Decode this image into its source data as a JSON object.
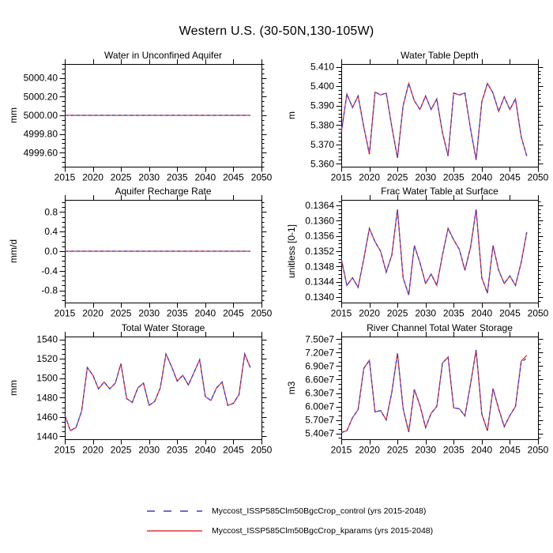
{
  "figure": {
    "title": "Western U.S. (30-50N,130-105W)",
    "background": "#ffffff",
    "frame_color": "#000000"
  },
  "years": [
    2015,
    2016,
    2017,
    2018,
    2019,
    2020,
    2021,
    2022,
    2023,
    2024,
    2025,
    2026,
    2027,
    2028,
    2029,
    2030,
    2031,
    2032,
    2033,
    2034,
    2035,
    2036,
    2037,
    2038,
    2039,
    2040,
    2041,
    2042,
    2043,
    2044,
    2045,
    2046,
    2047,
    2048
  ],
  "chart_data": [
    {
      "type": "line",
      "title": "Water in Unconfined Aquifer",
      "ylabel": "mm",
      "xlim": [
        2015,
        2050
      ],
      "ylim": [
        4999.45,
        5000.55
      ],
      "xticks": [
        2015,
        2020,
        2025,
        2030,
        2035,
        2040,
        2045,
        2050
      ],
      "ytick_vals": [
        4999.6,
        4999.8,
        5000.0,
        5000.2,
        5000.4
      ],
      "ytick_labels": [
        "4999.60",
        "4999.80",
        "5000.00",
        "5000.20",
        "5000.40"
      ],
      "grid": false,
      "series": [
        {
          "name": "Myccost_ISSP585Clm50BgcCrop_kparams",
          "color": "#e03535",
          "dash": false,
          "values": [
            5000,
            5000,
            5000,
            5000,
            5000,
            5000,
            5000,
            5000,
            5000,
            5000,
            5000,
            5000,
            5000,
            5000,
            5000,
            5000,
            5000,
            5000,
            5000,
            5000,
            5000,
            5000,
            5000,
            5000,
            5000,
            5000,
            5000,
            5000,
            5000,
            5000,
            5000,
            5000,
            5000,
            5000
          ]
        },
        {
          "name": "Myccost_ISSP585Clm50BgcCrop_control",
          "color": "#3c3ccd",
          "dash": true,
          "values": [
            5000,
            5000,
            5000,
            5000,
            5000,
            5000,
            5000,
            5000,
            5000,
            5000,
            5000,
            5000,
            5000,
            5000,
            5000,
            5000,
            5000,
            5000,
            5000,
            5000,
            5000,
            5000,
            5000,
            5000,
            5000,
            5000,
            5000,
            5000,
            5000,
            5000,
            5000,
            5000,
            5000,
            5000
          ]
        }
      ]
    },
    {
      "type": "line",
      "title": "Water Table Depth",
      "ylabel": "m",
      "xlim": [
        2015,
        2050
      ],
      "ylim": [
        5.3585,
        5.4115
      ],
      "xticks": [
        2015,
        2020,
        2025,
        2030,
        2035,
        2040,
        2045,
        2050
      ],
      "ytick_vals": [
        5.36,
        5.37,
        5.38,
        5.39,
        5.4,
        5.41
      ],
      "ytick_labels": [
        "5.360",
        "5.370",
        "5.380",
        "5.390",
        "5.400",
        "5.410"
      ],
      "grid": false,
      "series": [
        {
          "name": "Myccost_ISSP585Clm50BgcCrop_kparams",
          "color": "#e03535",
          "dash": false,
          "values": [
            5.376,
            5.396,
            5.389,
            5.395,
            5.379,
            5.365,
            5.397,
            5.3955,
            5.3965,
            5.379,
            5.363,
            5.39,
            5.4015,
            5.3925,
            5.388,
            5.395,
            5.388,
            5.3935,
            5.376,
            5.364,
            5.3965,
            5.3955,
            5.3965,
            5.378,
            5.362,
            5.392,
            5.4015,
            5.3965,
            5.387,
            5.3945,
            5.388,
            5.3935,
            5.374,
            5.364
          ]
        },
        {
          "name": "Myccost_ISSP585Clm50BgcCrop_control",
          "color": "#3c3ccd",
          "dash": true,
          "values": [
            5.376,
            5.396,
            5.389,
            5.395,
            5.379,
            5.365,
            5.397,
            5.3955,
            5.3965,
            5.379,
            5.363,
            5.39,
            5.4015,
            5.3925,
            5.388,
            5.395,
            5.388,
            5.3935,
            5.376,
            5.364,
            5.3965,
            5.3955,
            5.3965,
            5.378,
            5.362,
            5.392,
            5.4015,
            5.3965,
            5.387,
            5.3945,
            5.388,
            5.3935,
            5.374,
            5.364
          ]
        }
      ]
    },
    {
      "type": "line",
      "title": "Aquifer Recharge Rate",
      "ylabel": "mm/d",
      "xlim": [
        2015,
        2050
      ],
      "ylim": [
        -1.05,
        1.05
      ],
      "xticks": [
        2015,
        2020,
        2025,
        2030,
        2035,
        2040,
        2045,
        2050
      ],
      "ytick_vals": [
        -0.8,
        -0.4,
        0.0,
        0.4,
        0.8
      ],
      "ytick_labels": [
        "-0.8",
        "-0.4",
        "0.0",
        "0.4",
        "0.8"
      ],
      "grid": false,
      "series": [
        {
          "name": "Myccost_ISSP585Clm50BgcCrop_kparams",
          "color": "#e03535",
          "dash": false,
          "values": [
            0,
            0,
            0,
            0,
            0,
            0,
            0,
            0,
            0,
            0,
            0,
            0,
            0,
            0,
            0,
            0,
            0,
            0,
            0,
            0,
            0,
            0,
            0,
            0,
            0,
            0,
            0,
            0,
            0,
            0,
            0,
            0,
            0,
            0
          ]
        },
        {
          "name": "Myccost_ISSP585Clm50BgcCrop_control",
          "color": "#3c3ccd",
          "dash": true,
          "values": [
            0,
            0,
            0,
            0,
            0,
            0,
            0,
            0,
            0,
            0,
            0,
            0,
            0,
            0,
            0,
            0,
            0,
            0,
            0,
            0,
            0,
            0,
            0,
            0,
            0,
            0,
            0,
            0,
            0,
            0,
            0,
            0,
            0,
            0
          ]
        }
      ]
    },
    {
      "type": "line",
      "title": "Frac Water Table at Surface",
      "ylabel": "unitless [0-1]",
      "xlim": [
        2015,
        2050
      ],
      "ylim": [
        0.13385,
        0.13655
      ],
      "xticks": [
        2015,
        2020,
        2025,
        2030,
        2035,
        2040,
        2045,
        2050
      ],
      "ytick_vals": [
        0.134,
        0.1344,
        0.1348,
        0.1352,
        0.1356,
        0.136,
        0.1364
      ],
      "ytick_labels": [
        "0.1340",
        "0.1344",
        "0.1348",
        "0.1352",
        "0.1356",
        "0.1360",
        "0.1364"
      ],
      "grid": false,
      "series": [
        {
          "name": "Myccost_ISSP585Clm50BgcCrop_kparams",
          "color": "#e03535",
          "dash": false,
          "values": [
            0.135,
            0.1343,
            0.1345,
            0.13425,
            0.135,
            0.1358,
            0.13545,
            0.1352,
            0.13465,
            0.1351,
            0.1363,
            0.1345,
            0.13405,
            0.13535,
            0.1349,
            0.13435,
            0.1346,
            0.1343,
            0.1351,
            0.1358,
            0.1355,
            0.13525,
            0.1347,
            0.1353,
            0.1363,
            0.1345,
            0.1341,
            0.13535,
            0.1347,
            0.13435,
            0.13455,
            0.1343,
            0.1349,
            0.1357
          ]
        },
        {
          "name": "Myccost_ISSP585Clm50BgcCrop_control",
          "color": "#3c3ccd",
          "dash": true,
          "values": [
            0.135,
            0.1343,
            0.1345,
            0.13425,
            0.135,
            0.1358,
            0.13545,
            0.1352,
            0.13465,
            0.1351,
            0.1363,
            0.1345,
            0.13405,
            0.13535,
            0.1349,
            0.13435,
            0.1346,
            0.1343,
            0.1351,
            0.1358,
            0.1355,
            0.13525,
            0.1347,
            0.1353,
            0.1363,
            0.1345,
            0.1341,
            0.13535,
            0.1347,
            0.13435,
            0.13455,
            0.1343,
            0.1349,
            0.1357
          ]
        }
      ]
    },
    {
      "type": "line",
      "title": "Total Water Storage",
      "ylabel": "mm",
      "xlim": [
        2015,
        2050
      ],
      "ylim": [
        1437,
        1543
      ],
      "xticks": [
        2015,
        2020,
        2025,
        2030,
        2035,
        2040,
        2045,
        2050
      ],
      "ytick_vals": [
        1440,
        1460,
        1480,
        1500,
        1520,
        1540
      ],
      "ytick_labels": [
        "1440",
        "1460",
        "1480",
        "1500",
        "1520",
        "1540"
      ],
      "grid": false,
      "series": [
        {
          "name": "Myccost_ISSP585Clm50BgcCrop_kparams",
          "color": "#e03535",
          "dash": false,
          "values": [
            1462,
            1446,
            1449,
            1466,
            1511,
            1503,
            1489,
            1496,
            1489,
            1495,
            1515,
            1479,
            1475,
            1490,
            1495,
            1472,
            1476,
            1490,
            1525,
            1512,
            1497,
            1503,
            1493,
            1506,
            1519,
            1481,
            1477,
            1490,
            1496,
            1472,
            1474,
            1483,
            1525,
            1511
          ]
        },
        {
          "name": "Myccost_ISSP585Clm50BgcCrop_control",
          "color": "#3c3ccd",
          "dash": true,
          "values": [
            1462,
            1446,
            1449,
            1466,
            1511,
            1503,
            1489,
            1496,
            1489,
            1495,
            1515,
            1479,
            1475,
            1490,
            1495,
            1472,
            1476,
            1490,
            1525,
            1512,
            1497,
            1503,
            1493,
            1506,
            1519,
            1481,
            1477,
            1490,
            1496,
            1472,
            1474,
            1483,
            1525,
            1511
          ]
        }
      ]
    },
    {
      "type": "line",
      "title": "River Channel Total Water Storage",
      "ylabel": "m3",
      "xlim": [
        2015,
        2050
      ],
      "ylim": [
        52700000.0,
        75600000.0
      ],
      "xticks": [
        2015,
        2020,
        2025,
        2030,
        2035,
        2040,
        2045,
        2050
      ],
      "ytick_vals": [
        54000000.0,
        57000000.0,
        60000000.0,
        63000000.0,
        66000000.0,
        69000000.0,
        72000000.0,
        75000000.0
      ],
      "ytick_labels": [
        "5.40e7",
        "5.70e7",
        "6.00e7",
        "6.30e7",
        "6.60e7",
        "6.90e7",
        "7.20e7",
        "7.50e7"
      ],
      "grid": false,
      "series": [
        {
          "name": "Myccost_ISSP585Clm50BgcCrop_kparams",
          "color": "#e03535",
          "dash": false,
          "values": [
            54200000.0,
            54600000.0,
            57500000.0,
            59300000.0,
            68500000.0,
            70300000.0,
            58800000.0,
            59100000.0,
            57000000.0,
            63200000.0,
            71900000.0,
            59500000.0,
            54300000.0,
            63800000.0,
            60200000.0,
            55300000.0,
            58500000.0,
            60000000.0,
            69700000.0,
            71000000.0,
            59700000.0,
            59500000.0,
            57900000.0,
            65000000.0,
            72600000.0,
            58300000.0,
            54600000.0,
            64000000.0,
            59500000.0,
            55500000.0,
            58000000.0,
            60000000.0,
            70100000.0,
            71400000.0
          ]
        },
        {
          "name": "Myccost_ISSP585Clm50BgcCrop_control",
          "color": "#3c3ccd",
          "dash": true,
          "values": [
            54200000.0,
            54600000.0,
            57500000.0,
            59300000.0,
            68500000.0,
            70300000.0,
            58800000.0,
            59100000.0,
            57000000.0,
            63200000.0,
            71900000.0,
            59500000.0,
            54300000.0,
            63800000.0,
            60200000.0,
            55300000.0,
            58500000.0,
            60000000.0,
            69700000.0,
            71000000.0,
            59700000.0,
            59500000.0,
            57900000.0,
            65000000.0,
            72600000.0,
            58300000.0,
            54600000.0,
            64000000.0,
            59500000.0,
            55500000.0,
            58000000.0,
            60000000.0,
            69800000.0,
            70800000.0
          ]
        }
      ]
    }
  ],
  "legend": {
    "entries": [
      {
        "label": "Myccost_ISSP585Clm50BgcCrop_control (yrs 2015-2048)",
        "color": "#3c3ccd",
        "style": "dashed"
      },
      {
        "label": "Myccost_ISSP585Clm50BgcCrop_kparams (yrs 2015-2048)",
        "color": "#e03535",
        "style": "solid"
      }
    ]
  }
}
